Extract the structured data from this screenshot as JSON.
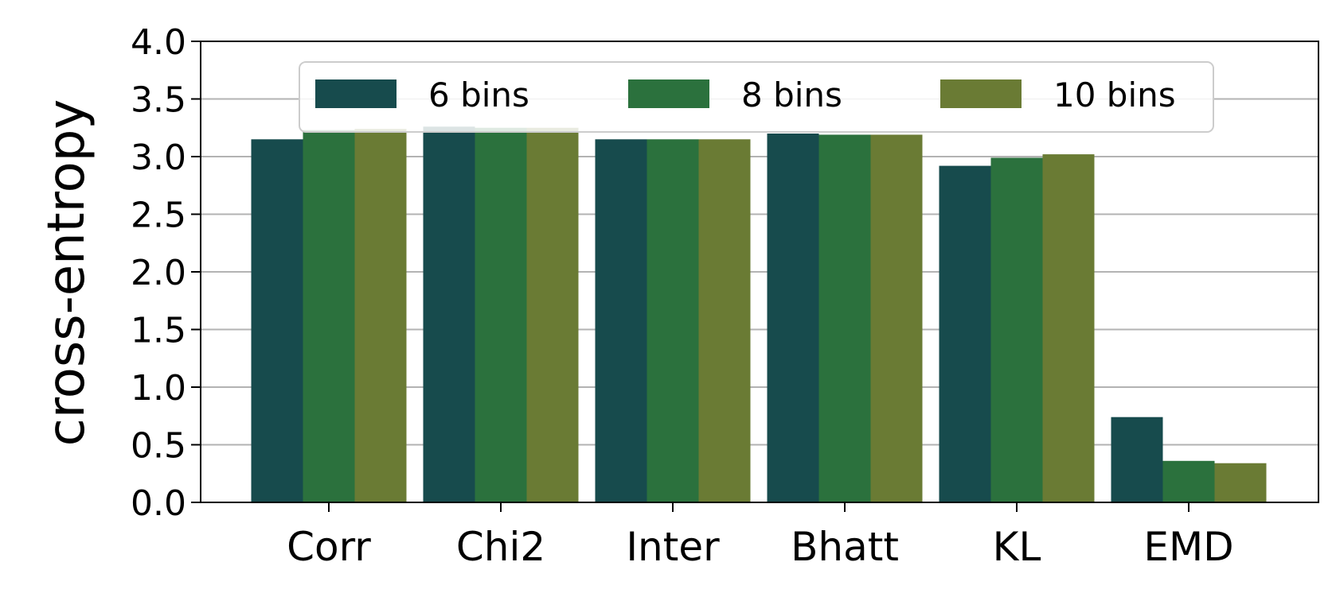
{
  "chart_data": {
    "type": "bar",
    "ylabel": "cross-entropy",
    "ylim": [
      0,
      4.0
    ],
    "yticks": [
      "0.0",
      "0.5",
      "1.0",
      "1.5",
      "2.0",
      "2.5",
      "3.0",
      "3.5",
      "4.0"
    ],
    "categories": [
      "Corr",
      "Chi2",
      "Inter",
      "Bhatt",
      "KL",
      "EMD"
    ],
    "series": [
      {
        "name": "6 bins",
        "color": "#174b4d",
        "values": [
          3.15,
          3.26,
          3.15,
          3.2,
          2.92,
          0.74
        ]
      },
      {
        "name": "8 bins",
        "color": "#2b713d",
        "values": [
          3.23,
          3.25,
          3.15,
          3.19,
          2.99,
          0.36
        ]
      },
      {
        "name": "10 bins",
        "color": "#6a7b34",
        "values": [
          3.24,
          3.25,
          3.15,
          3.19,
          3.02,
          0.34
        ]
      }
    ],
    "grid": "y",
    "legend_placement": "top-center"
  }
}
